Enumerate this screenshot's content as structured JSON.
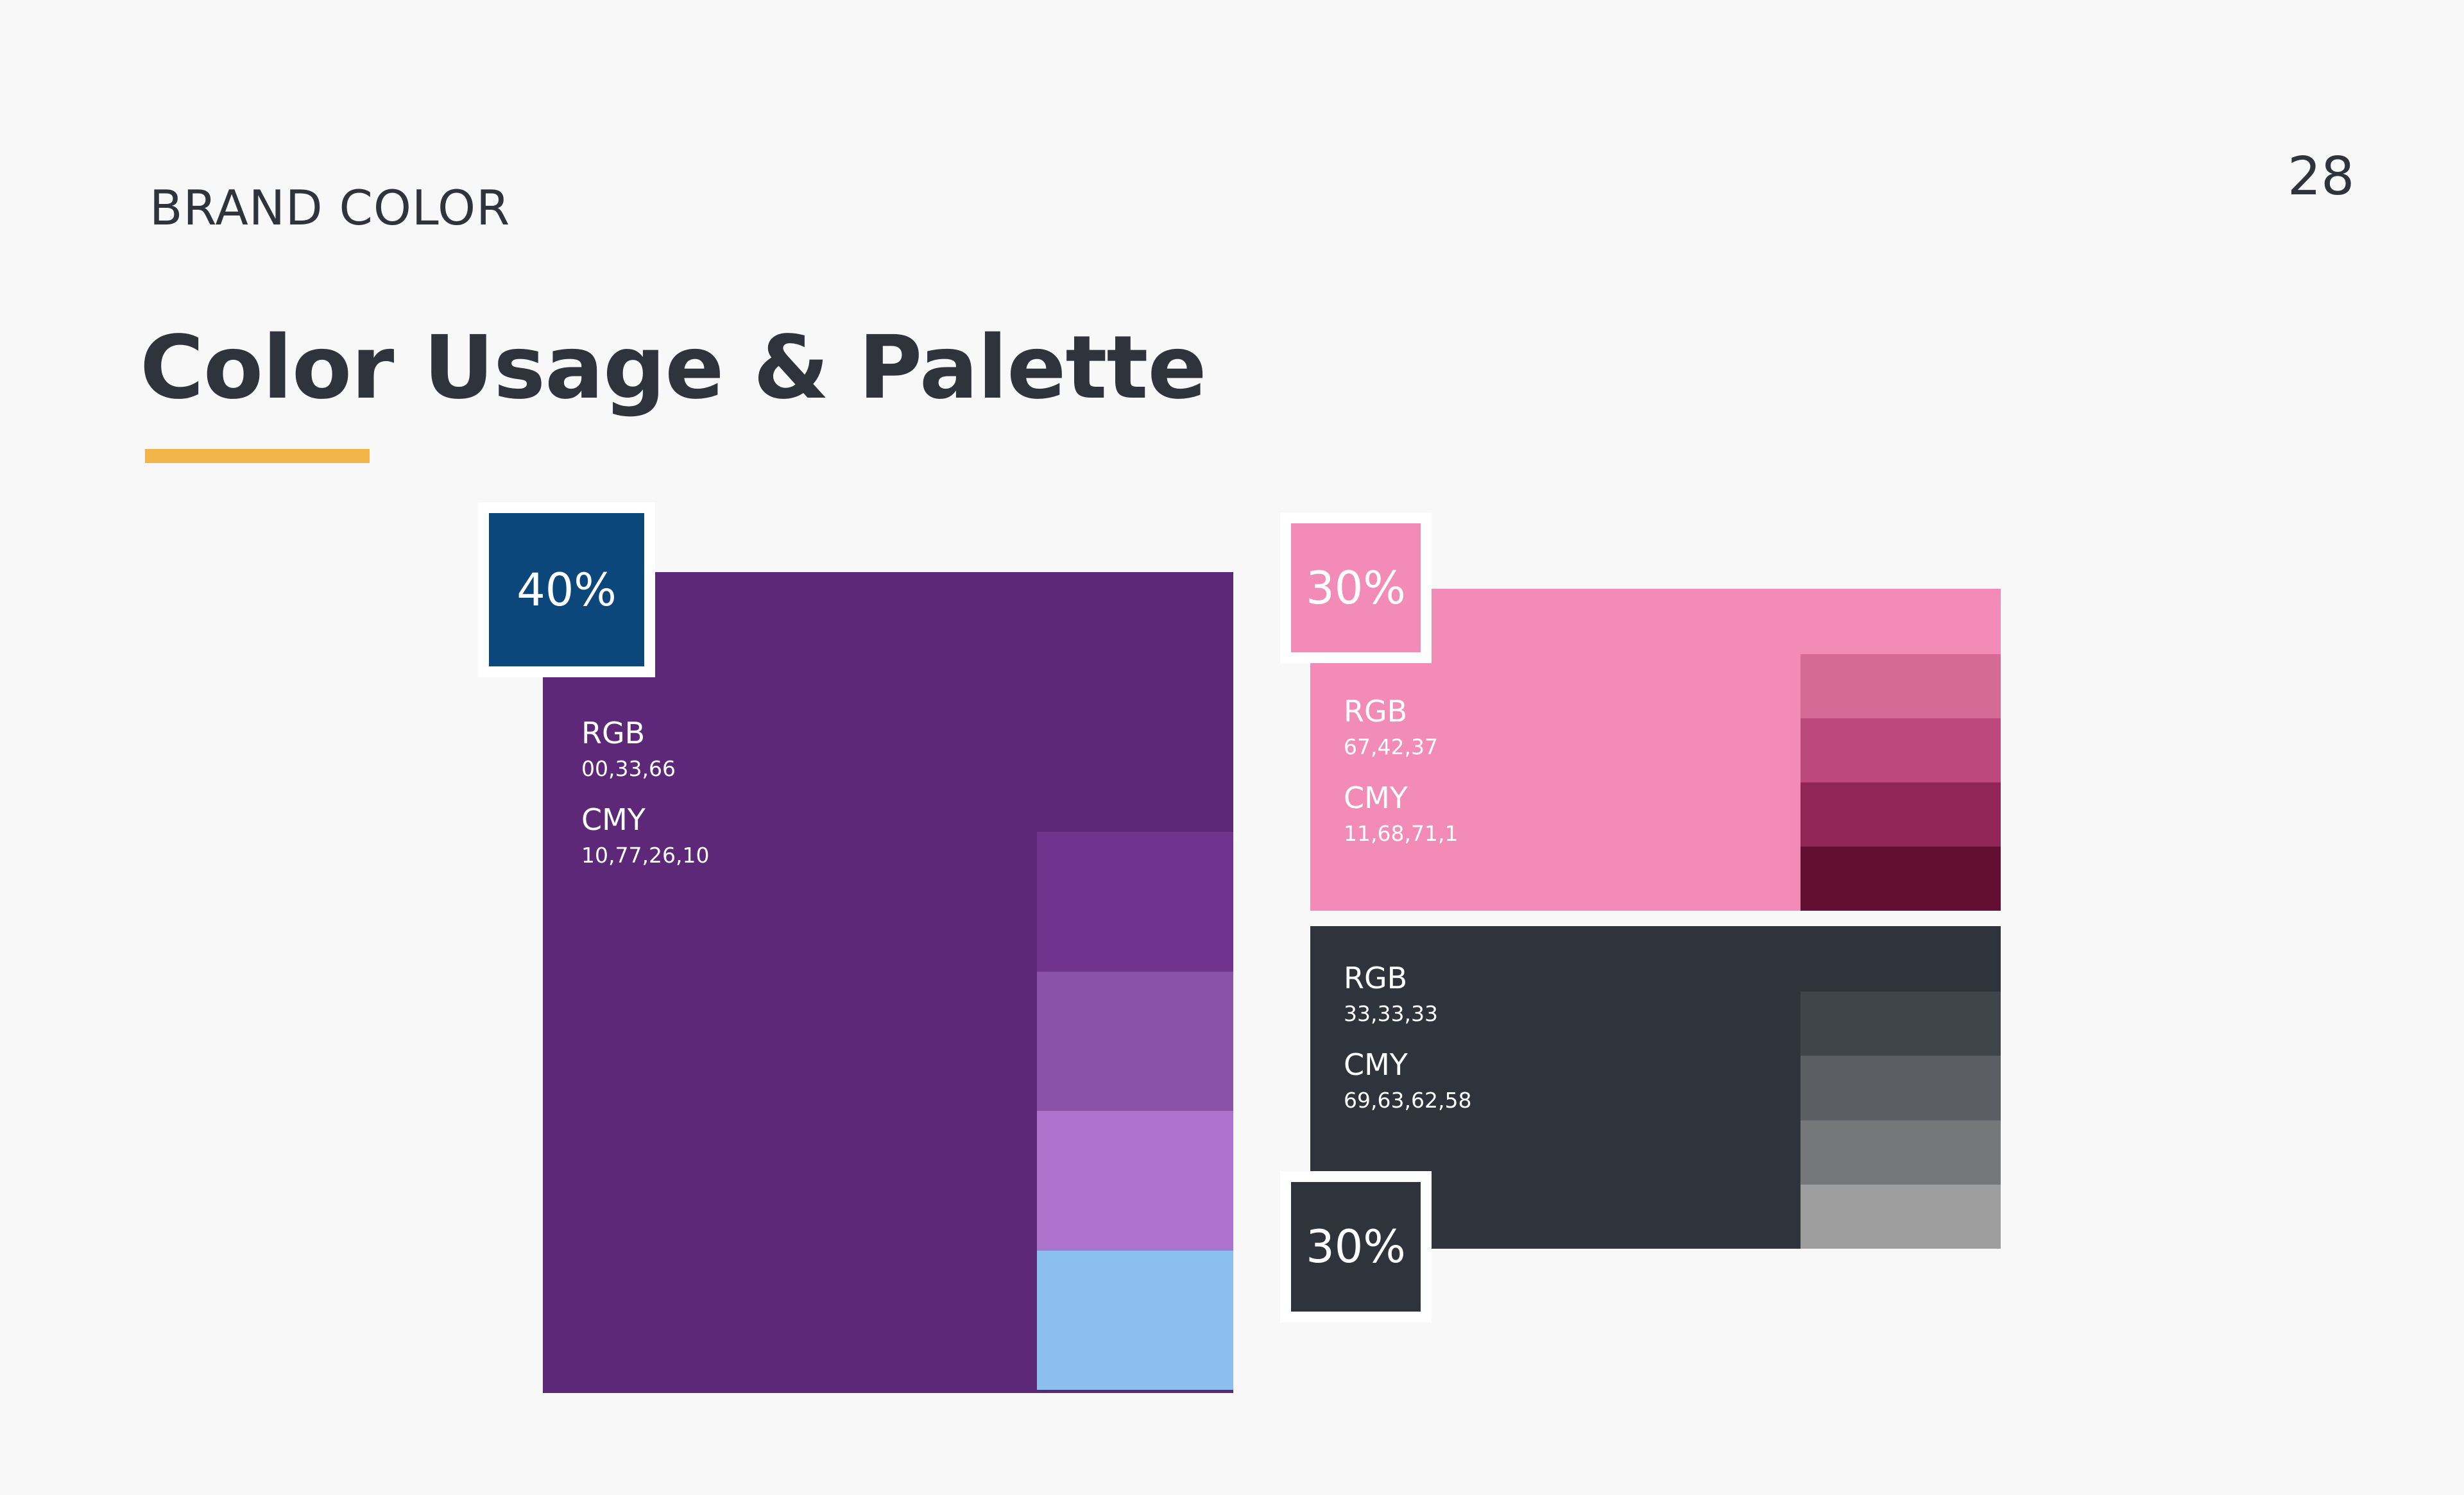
{
  "header": {
    "section_label": "BRAND COLOR",
    "page_number": "28",
    "title": "Color Usage & Palette",
    "accent_color": "#f2b54a"
  },
  "palette": {
    "primary": {
      "percent": "40%",
      "share": 0.4,
      "badge_color": "#0c477c",
      "base_color": "#5e2878",
      "rgb_label": "RGB",
      "rgb_value": "00,33,66",
      "cmy_label": "CMY",
      "cmy_value": "10,77,26,10",
      "tints": [
        "#70348e",
        "#8b52aa",
        "#ae73cc",
        "#8bbfee"
      ]
    },
    "secondary": {
      "percent": "30%",
      "share": 0.3,
      "badge_color": "#f28bb8",
      "base_color": "#f28bb8",
      "rgb_label": "RGB",
      "rgb_value": "67,42,37",
      "cmy_label": "CMY",
      "cmy_value": "11,68,71,1",
      "tints": [
        "#d66a96",
        "#bb497b",
        "#902556",
        "#620f33"
      ]
    },
    "neutral": {
      "percent": "30%",
      "share": 0.3,
      "badge_color": "#2f333b",
      "base_color": "#2f333b",
      "rgb_label": "RGB",
      "rgb_value": "33,33,33",
      "cmy_label": "CMY",
      "cmy_value": "69,63,62,58",
      "tints": [
        "#40444b",
        "#5b5e62",
        "#767778",
        "#9e9e9e"
      ]
    }
  }
}
